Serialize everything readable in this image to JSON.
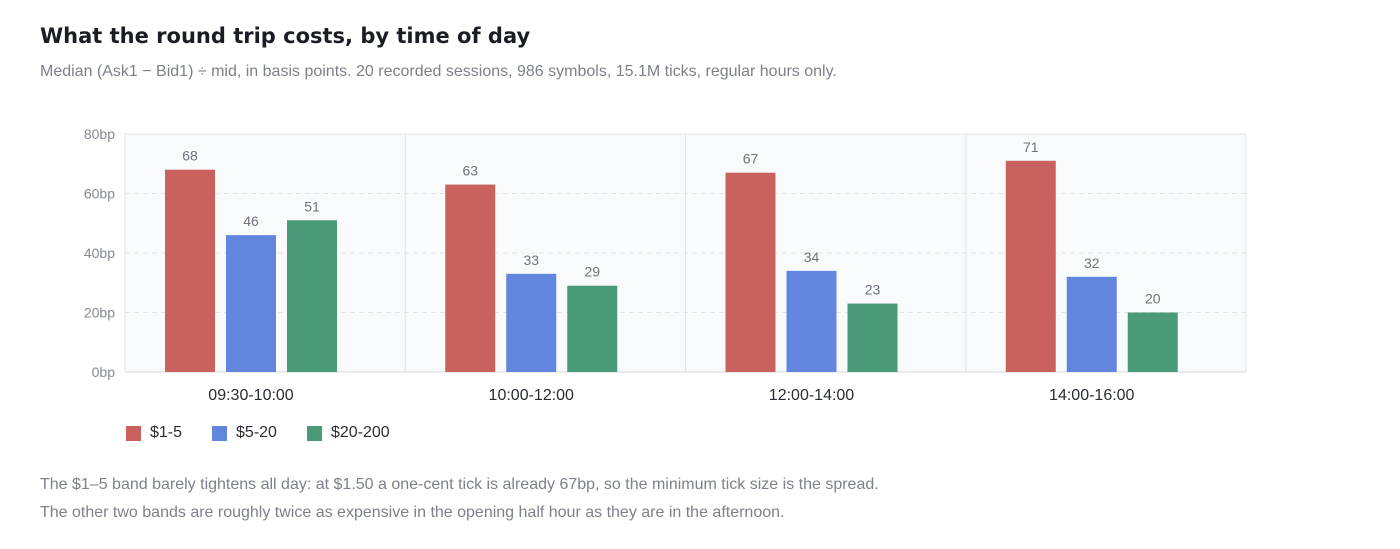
{
  "title": "What the round trip costs, by time of day",
  "subtitle": "Median (Ask1 − Bid1) ÷ mid, in basis points. 20 recorded sessions, 986 symbols, 15.1M ticks, regular hours only.",
  "chart_data": {
    "type": "bar",
    "categories": [
      "09:30-10:00",
      "10:00-12:00",
      "12:00-14:00",
      "14:00-16:00"
    ],
    "series": [
      {
        "name": "$1-5",
        "color": "#c9615f",
        "values": [
          68,
          63,
          67,
          71
        ]
      },
      {
        "name": "$5-20",
        "color": "#6285dd",
        "values": [
          46,
          33,
          34,
          32
        ]
      },
      {
        "name": "$20-200",
        "color": "#4a9a79",
        "values": [
          51,
          29,
          23,
          20
        ]
      }
    ],
    "ylim": [
      0,
      80
    ],
    "yticks": [
      0,
      20,
      40,
      60,
      80
    ],
    "ytick_labels": [
      "0bp",
      "20bp",
      "40bp",
      "60bp",
      "80bp"
    ],
    "grid": true,
    "legend_position": "bottom-left",
    "data_labels": true
  },
  "notes": [
    "The $1–5 band barely tightens all day: at $1.50 a one-cent tick is already 67bp, so the minimum tick size is the spread.",
    "The other two bands are roughly twice as expensive in the opening half hour as they are in the afternoon."
  ]
}
